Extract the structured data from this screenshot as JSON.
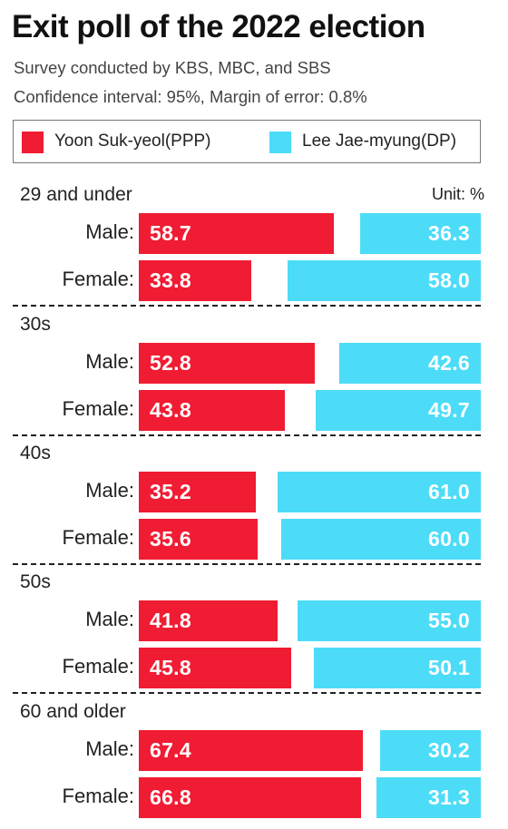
{
  "chart_data": {
    "type": "bar",
    "title": "Exit poll of the 2022 election",
    "subtitle_lines": [
      "Survey conducted by KBS, MBC, and SBS",
      "Confidence interval: 95%, Margin of error: 0.8%"
    ],
    "unit_label": "Unit: %",
    "legend": [
      {
        "name": "Yoon Suk-yeol(PPP)",
        "color": "#f01c33"
      },
      {
        "name": "Lee Jae-myung(DP)",
        "color": "#4cdcf8"
      }
    ],
    "groups": [
      {
        "label": "29 and under",
        "rows": [
          {
            "label": "Male:",
            "yoon": 58.7,
            "lee": 36.3
          },
          {
            "label": "Female:",
            "yoon": 33.8,
            "lee": 58.0
          }
        ]
      },
      {
        "label": "30s",
        "rows": [
          {
            "label": "Male:",
            "yoon": 52.8,
            "lee": 42.6
          },
          {
            "label": "Female:",
            "yoon": 43.8,
            "lee": 49.7
          }
        ]
      },
      {
        "label": "40s",
        "rows": [
          {
            "label": "Male:",
            "yoon": 35.2,
            "lee": 61.0
          },
          {
            "label": "Female:",
            "yoon": 35.6,
            "lee": 60.0
          }
        ]
      },
      {
        "label": "50s",
        "rows": [
          {
            "label": "Male:",
            "yoon": 41.8,
            "lee": 55.0
          },
          {
            "label": "Female:",
            "yoon": 45.8,
            "lee": 50.1
          }
        ]
      },
      {
        "label": "60 and older",
        "rows": [
          {
            "label": "Male:",
            "yoon": 67.4,
            "lee": 30.2
          },
          {
            "label": "Female:",
            "yoon": 66.8,
            "lee": 31.3
          }
        ]
      }
    ]
  }
}
